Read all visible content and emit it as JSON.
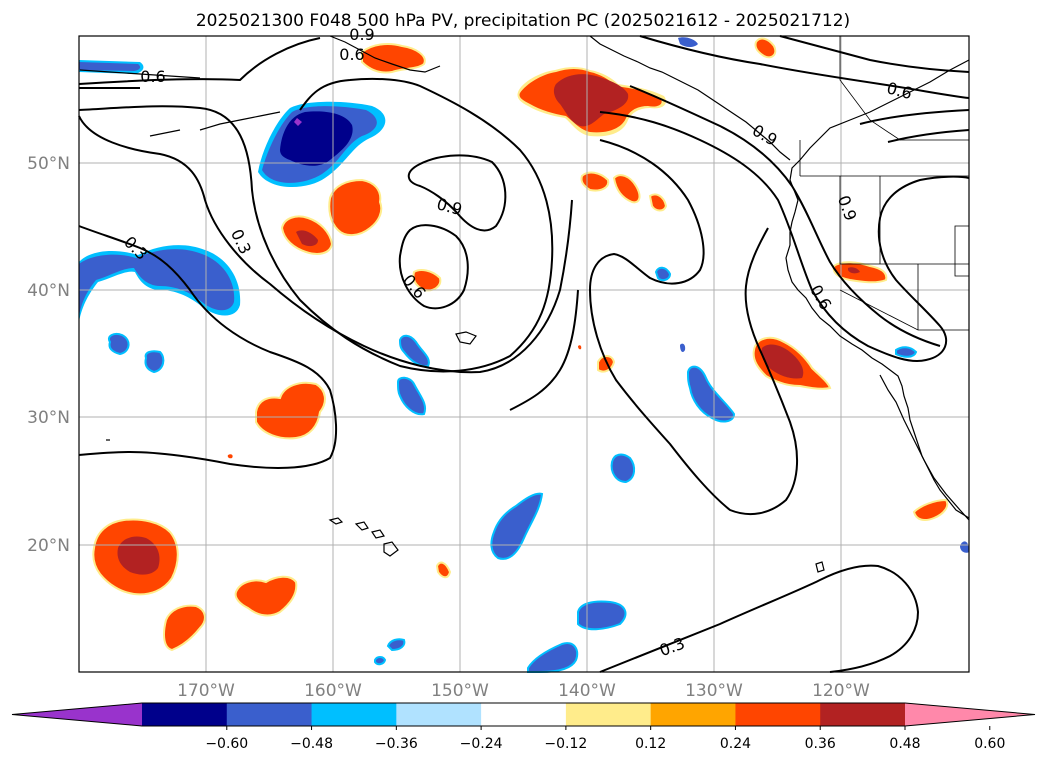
{
  "title": "2025021300 F048 500 hPa PV, precipitation PC (2025021612 - 2025021712)",
  "lat_labels": [
    "50°N",
    "40°N",
    "30°N",
    "20°N"
  ],
  "lon_labels": [
    "170°W",
    "160°W",
    "150°W",
    "140°W",
    "130°W",
    "120°W"
  ],
  "contour_labels": [
    "0.6",
    "0.6",
    "0.6",
    "0.9",
    "0.9",
    "0.9",
    "0.9",
    "0.3",
    "0.6",
    "0.6",
    "0.3"
  ],
  "colorbar": {
    "ticks": [
      "−0.60",
      "−0.48",
      "−0.36",
      "−0.24",
      "−0.12",
      "0.12",
      "0.24",
      "0.36",
      "0.48",
      "0.60"
    ],
    "colors": [
      "#9933cc",
      "#00008b",
      "#3a5fcd",
      "#00bfff",
      "#b0e2ff",
      "#ffffff",
      "#ffec8b",
      "#ffa500",
      "#ff4500",
      "#b22222",
      "#ff88aa"
    ]
  },
  "palette": {
    "neg_strong": "#00008b",
    "neg_mid": "#3a5fcd",
    "neg_light": "#00bfff",
    "neg_pale": "#b0e2ff",
    "pos_pale": "#ffec8b",
    "pos_light": "#ffa500",
    "pos_mid": "#ff4500",
    "pos_strong": "#b22222",
    "purple": "#9933cc"
  }
}
